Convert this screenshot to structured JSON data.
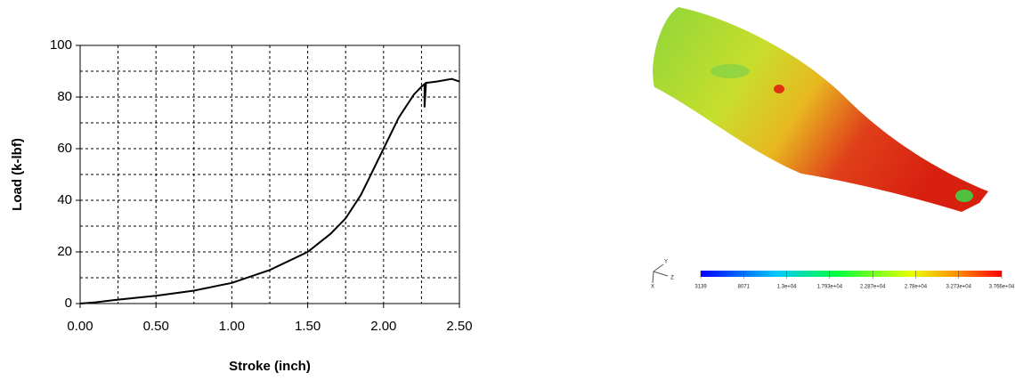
{
  "chart_data": [
    {
      "type": "line",
      "xlabel": "Stroke (inch)",
      "ylabel": "Load (k-lbf)",
      "color": "#000000",
      "x": [
        0,
        0.1,
        0.25,
        0.5,
        0.75,
        1.0,
        1.25,
        1.5,
        1.65,
        1.75,
        1.85,
        1.9,
        2.0,
        2.1,
        2.2,
        2.25,
        2.27,
        2.27,
        2.28,
        2.35,
        2.45,
        2.5
      ],
      "values": [
        0,
        0.5,
        1.5,
        3,
        5,
        8,
        13,
        20,
        27,
        33,
        42,
        48,
        60,
        72,
        81,
        84,
        85,
        76,
        85.5,
        86,
        87,
        86
      ],
      "xlim": [
        0,
        2.5
      ],
      "xticks": [
        {
          "value": 0,
          "label": "0.00"
        },
        {
          "value": 0.5,
          "label": "0.50"
        },
        {
          "value": 1,
          "label": "1.00"
        },
        {
          "value": 1.5,
          "label": "1.50"
        },
        {
          "value": 2,
          "label": "2.00"
        },
        {
          "value": 2.5,
          "label": "2.50"
        }
      ],
      "ylim": [
        0,
        100
      ],
      "yticks": [
        0,
        20,
        40,
        60,
        80,
        100
      ],
      "x_grid": [
        0.25,
        0.5,
        0.75,
        1,
        1.25,
        1.5,
        1.75,
        2,
        2.25
      ],
      "y_grid": [
        10,
        20,
        30,
        40,
        50,
        60,
        70,
        80,
        90
      ]
    },
    {
      "type": "colorbar",
      "clim": [
        3139,
        37660
      ],
      "ticks": [
        3139,
        8071,
        {
          "value": 13000,
          "label": "1.3e+04"
        },
        {
          "value": 17930,
          "label": "1.793e+04"
        },
        {
          "value": 22870,
          "label": "2.287e+04"
        },
        {
          "value": 27800,
          "label": "2.78e+04"
        },
        {
          "value": 32730,
          "label": "3.273e+04"
        },
        {
          "value": 37660,
          "label": "3.766e+04"
        }
      ],
      "axes_labels": [
        "Y",
        "Z",
        "X"
      ]
    }
  ]
}
